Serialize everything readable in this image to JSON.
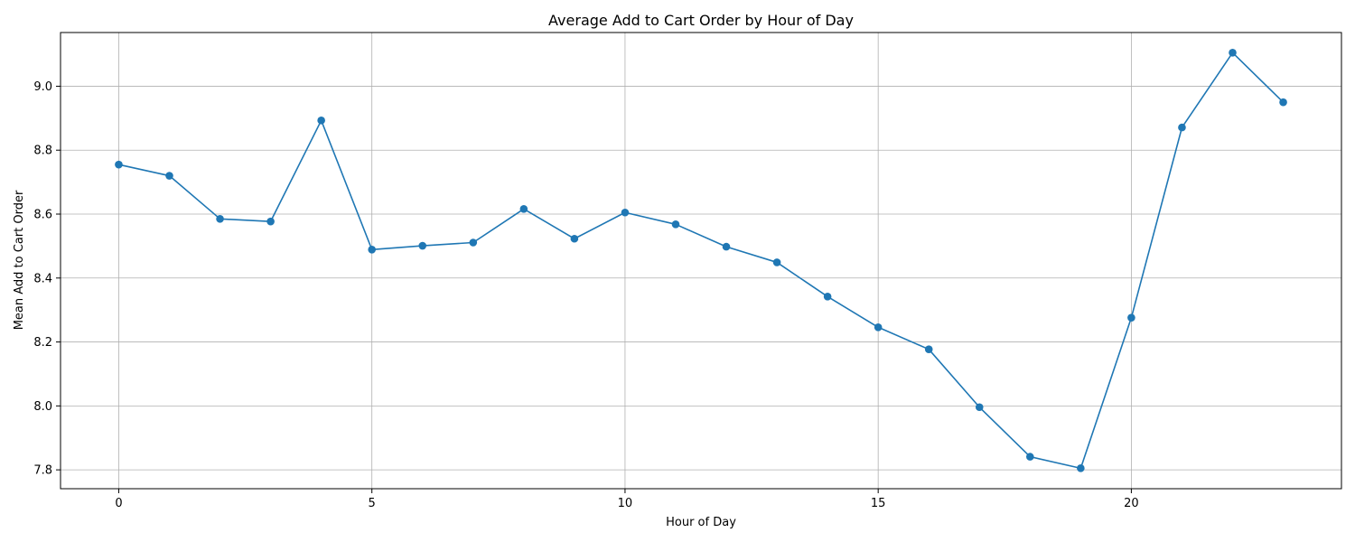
{
  "chart_data": {
    "type": "line",
    "title": "Average Add to Cart Order by Hour of Day",
    "xlabel": "Hour of Day",
    "ylabel": "Mean Add to Cart Order",
    "xlim": [
      -1.15,
      24.15
    ],
    "ylim": [
      7.741,
      9.168
    ],
    "x_ticks": [
      0,
      5,
      10,
      15,
      20
    ],
    "y_ticks": [
      7.8,
      8.0,
      8.2,
      8.4,
      8.6,
      8.8,
      9.0
    ],
    "x_tick_labels": [
      "0",
      "5",
      "10",
      "15",
      "20"
    ],
    "y_tick_labels": [
      "7.8",
      "8.0",
      "8.2",
      "8.4",
      "8.6",
      "8.8",
      "9.0"
    ],
    "grid": true,
    "series": [
      {
        "color": "#1f77b4",
        "marker": "circle",
        "x": [
          0,
          1,
          2,
          3,
          4,
          5,
          6,
          7,
          8,
          9,
          10,
          11,
          12,
          13,
          14,
          15,
          16,
          17,
          18,
          19,
          20,
          21,
          22,
          23
        ],
        "values": [
          8.755,
          8.72,
          8.585,
          8.577,
          8.893,
          8.489,
          8.501,
          8.511,
          8.616,
          8.523,
          8.605,
          8.568,
          8.498,
          8.449,
          8.342,
          8.246,
          8.177,
          7.996,
          7.841,
          7.805,
          8.276,
          8.871,
          9.105,
          8.95
        ]
      }
    ]
  }
}
